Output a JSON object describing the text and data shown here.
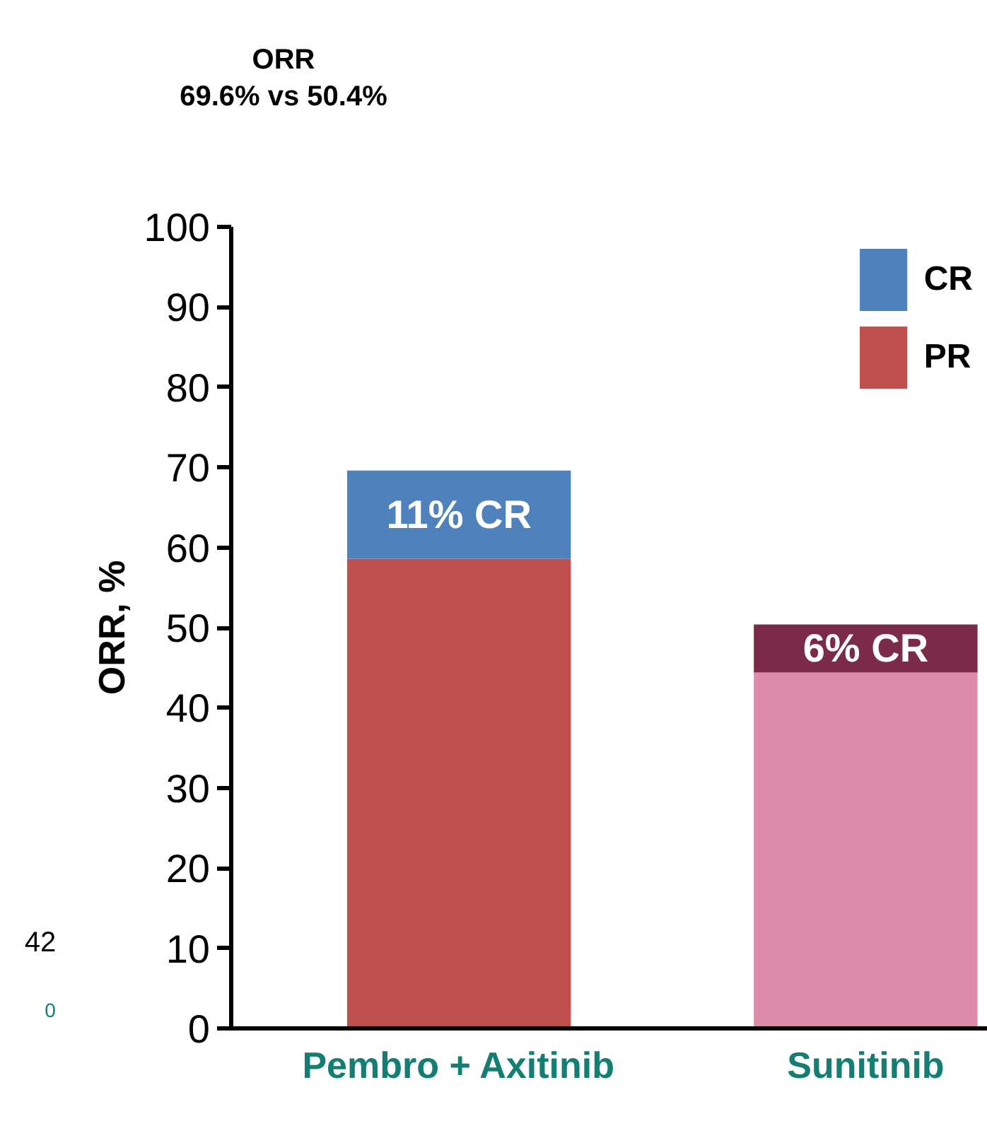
{
  "chart_data": {
    "type": "bar",
    "stacked": true,
    "ylabel": "ORR, %",
    "categories": [
      "Pembro + Axitinib",
      "Sunitinib"
    ],
    "ylim": [
      0,
      100
    ],
    "yticks": [
      0,
      10,
      20,
      30,
      40,
      50,
      60,
      70,
      80,
      90,
      100
    ],
    "grid": false,
    "legend": "top right",
    "series": [
      {
        "name": "PR",
        "colors": [
          "#c0504d",
          "#dc8ca8"
        ],
        "values": [
          58.6,
          44.4
        ]
      },
      {
        "name": "CR",
        "colors": [
          "#4f81bd",
          "#7b2a4a"
        ],
        "values": [
          11.0,
          6.0
        ],
        "value_labels": [
          "11% CR",
          "6% CR"
        ]
      }
    ],
    "annotations": [
      "ORR\n69.6% vs 50.4%",
      "42",
      "0"
    ]
  }
}
